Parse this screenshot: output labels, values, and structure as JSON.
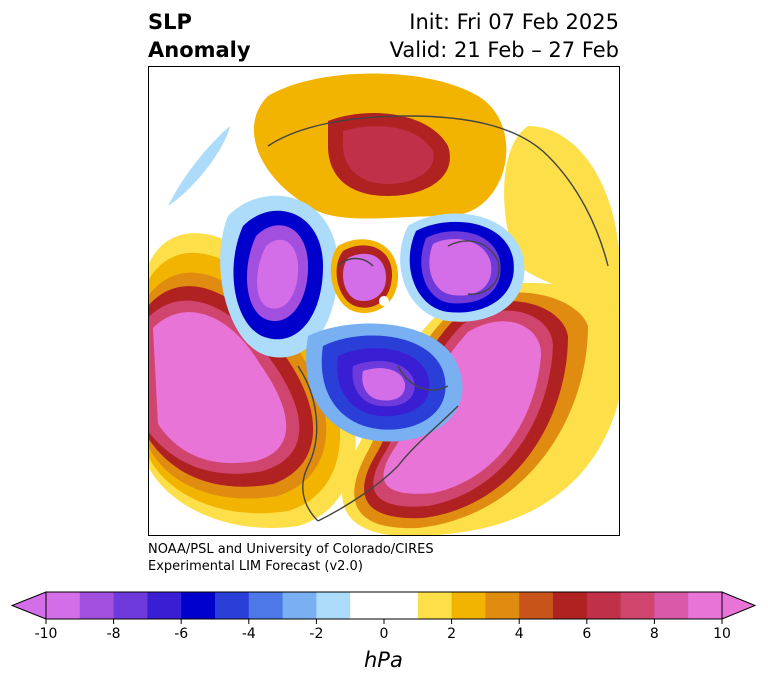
{
  "title": {
    "line1": "SLP",
    "line2": "Anomaly"
  },
  "subtitle": {
    "init": "Init: Fri 07 Feb 2025",
    "valid": "Valid: 21 Feb – 27 Feb"
  },
  "credit": {
    "line1": "NOAA/PSL and University of Colorado/CIRES",
    "line2": "Experimental LIM Forecast (v2.0)"
  },
  "colorbar": {
    "unit": "hPa",
    "ticks": [
      "-10",
      "-8",
      "-6",
      "-4",
      "-2",
      "0",
      "2",
      "4",
      "6",
      "8",
      "10"
    ],
    "colors": [
      "#d36ee8",
      "#a24fe0",
      "#6e3adc",
      "#3a1ed4",
      "#0000cc",
      "#2a3fd8",
      "#4c78e8",
      "#78b0f2",
      "#acdcfa",
      "#ffffff",
      "#ffffff",
      "#fddf4a",
      "#f2b400",
      "#e08c10",
      "#c8541a",
      "#b02222",
      "#c03048",
      "#d0456e",
      "#d85aa8",
      "#e874d8"
    ]
  },
  "map": {
    "projection": "polar-stereographic",
    "features": [
      "positive anomaly over North Pacific",
      "positive anomaly over North Atlantic",
      "negative anomaly over central Canada",
      "negative anomaly over Scandinavia",
      "negative anomaly over Alaska",
      "positive anomaly over Siberia"
    ]
  }
}
